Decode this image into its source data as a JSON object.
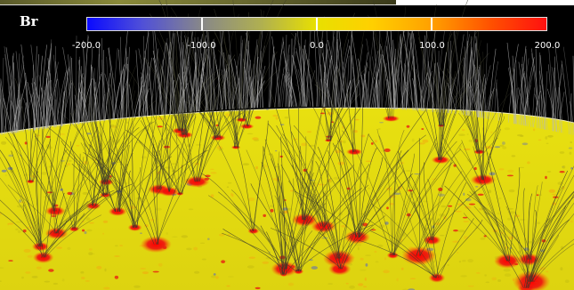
{
  "colorbar": {
    "variable": "Br",
    "min": -200.0,
    "max": 200.0,
    "ticks": [
      "-200.0",
      "-100.0",
      "0.0",
      "100.0",
      "200.0"
    ],
    "colors": [
      "#0a0aff",
      "#888888",
      "#e8e000",
      "#ffa000",
      "#ff1010"
    ]
  },
  "scene": {
    "surface_color": "#e6dc12",
    "background_color": "#000000",
    "field_line_color": "#3a3a2a"
  }
}
